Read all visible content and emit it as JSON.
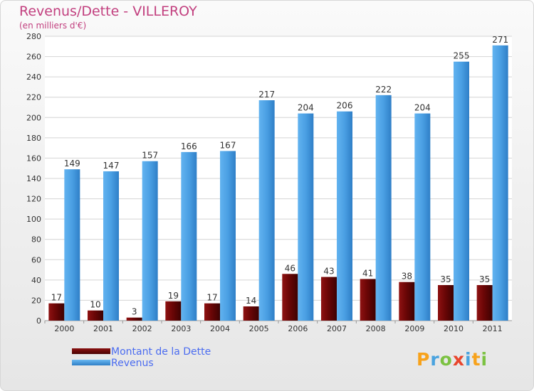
{
  "title": "Revenus/Dette - VILLEROY",
  "subtitle": "(en milliers d'€)",
  "logo_text": "Proxiti",
  "colors": {
    "dette": "#7a0a0a",
    "revenus": "#4a9ee2",
    "title": "#c2407f",
    "legend_text": "#4b6cf0"
  },
  "chart_data": {
    "type": "bar",
    "categories": [
      "2000",
      "2001",
      "2002",
      "2003",
      "2004",
      "2005",
      "2006",
      "2007",
      "2008",
      "2009",
      "2010",
      "2011"
    ],
    "series": [
      {
        "name": "Montant de la Dette",
        "values": [
          17,
          10,
          3,
          19,
          17,
          14,
          46,
          43,
          41,
          38,
          35,
          35
        ]
      },
      {
        "name": "Revenus",
        "values": [
          149,
          147,
          157,
          166,
          167,
          217,
          204,
          206,
          222,
          204,
          255,
          271
        ]
      }
    ],
    "ylim": [
      0,
      280
    ],
    "yticks": [
      0,
      20,
      40,
      60,
      80,
      100,
      120,
      140,
      160,
      180,
      200,
      220,
      240,
      260,
      280
    ],
    "grid": true,
    "legend_position": "bottom-left"
  }
}
